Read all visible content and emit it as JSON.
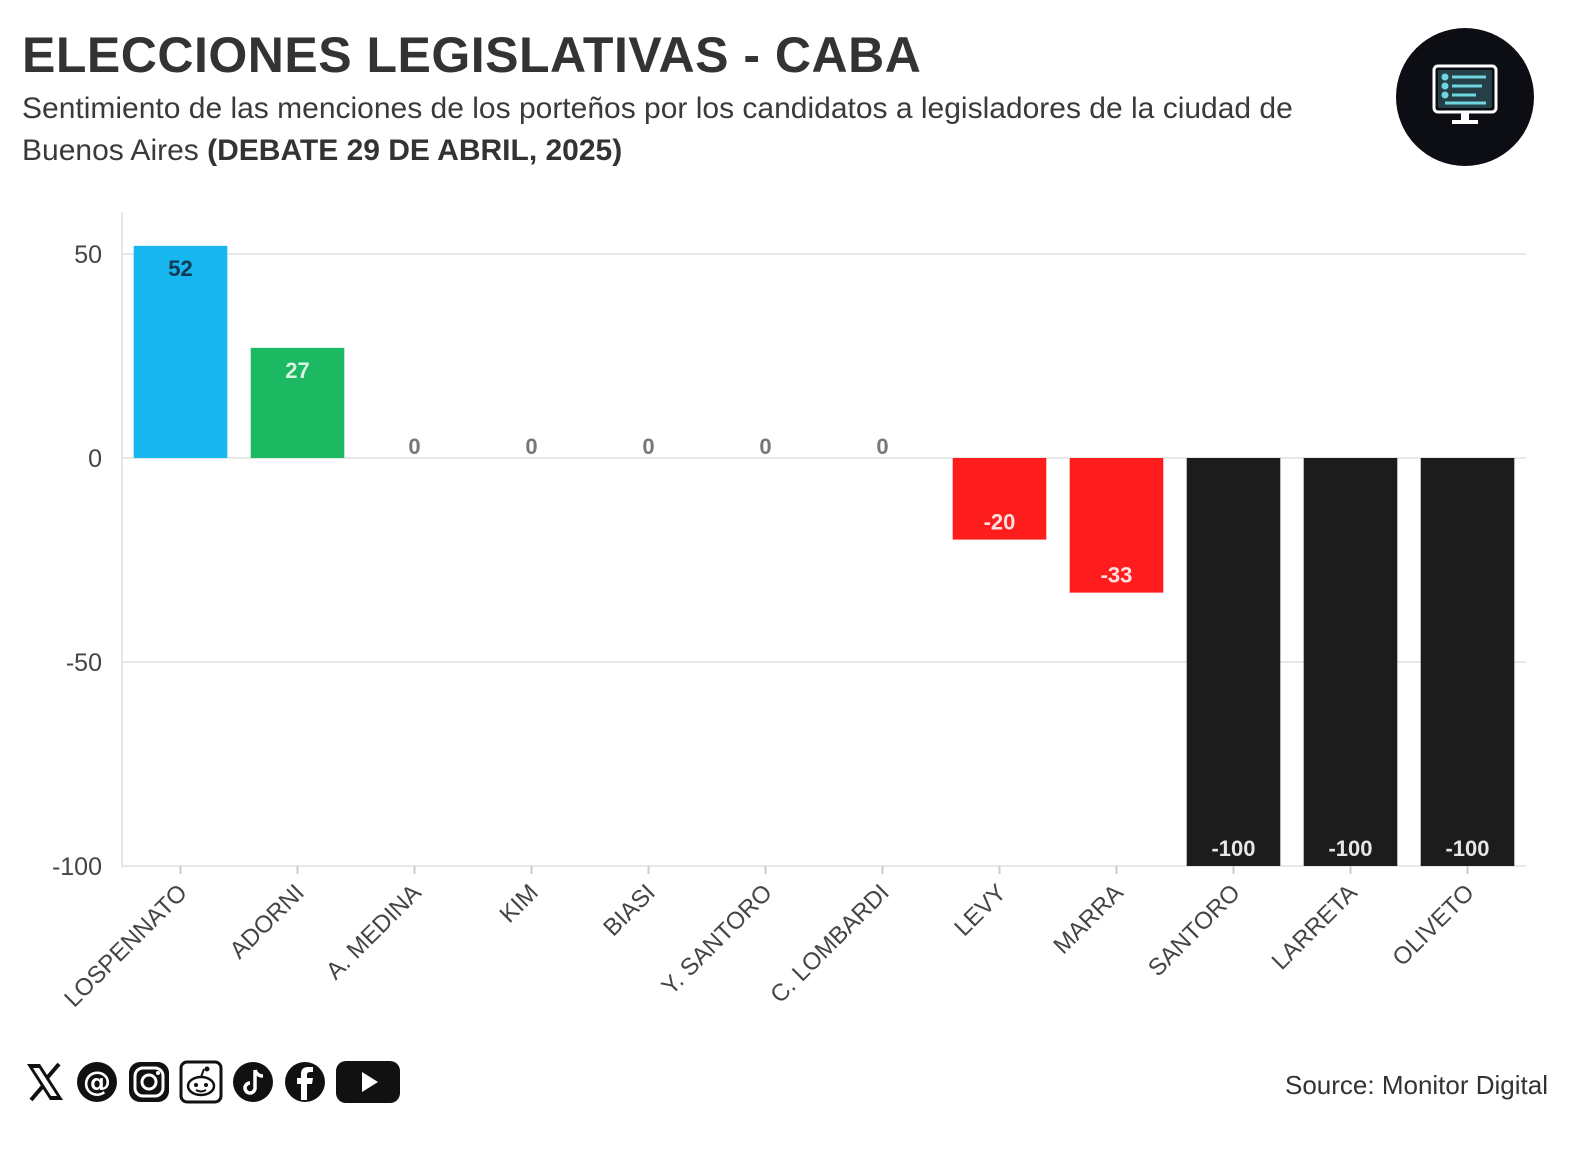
{
  "header": {
    "title": "ELECCIONES LEGISLATIVAS - CABA",
    "subtitle_main": "Sentimiento de las menciones de los porteños por los candidatos a legisladores de la ciudad de Buenos Aires",
    "subtitle_bold": "(DEBATE 29 DE ABRIL, 2025)"
  },
  "footer": {
    "source": "Source: Monitor Digital",
    "social_icons": [
      "x-icon",
      "threads-icon",
      "instagram-icon",
      "reddit-icon",
      "tiktok-icon",
      "facebook-icon",
      "youtube-icon"
    ]
  },
  "logo_icon": "monitor-dashboard-icon",
  "chart_data": {
    "type": "bar",
    "title": "ELECCIONES LEGISLATIVAS - CABA",
    "xlabel": "",
    "ylabel": "",
    "ylim": [
      -100,
      60
    ],
    "yticks": [
      50,
      0,
      -50,
      -100
    ],
    "grid": true,
    "categories": [
      "LOSPENNATO",
      "ADORNI",
      "A. MEDINA",
      "KIM",
      "BIASI",
      "Y. SANTORO",
      "C. LOMBARDI",
      "LEVY",
      "MARRA",
      "SANTORO",
      "LARRETA",
      "OLIVETO"
    ],
    "values": [
      52,
      27,
      0,
      0,
      0,
      0,
      0,
      -20,
      -33,
      -100,
      -100,
      -100
    ],
    "colors": [
      "#17b6ef",
      "#1db862",
      "#cccccc",
      "#cccccc",
      "#cccccc",
      "#cccccc",
      "#cccccc",
      "#ff1c1c",
      "#ff1c1c",
      "#1c1c1c",
      "#1c1c1c",
      "#1c1c1c"
    ],
    "label_colors": [
      "#123a52",
      "#d6f5e2",
      "#777777",
      "#777777",
      "#777777",
      "#777777",
      "#777777",
      "#ffe0e0",
      "#ffe0e0",
      "#e6e6e6",
      "#e6e6e6",
      "#e6e6e6"
    ]
  }
}
